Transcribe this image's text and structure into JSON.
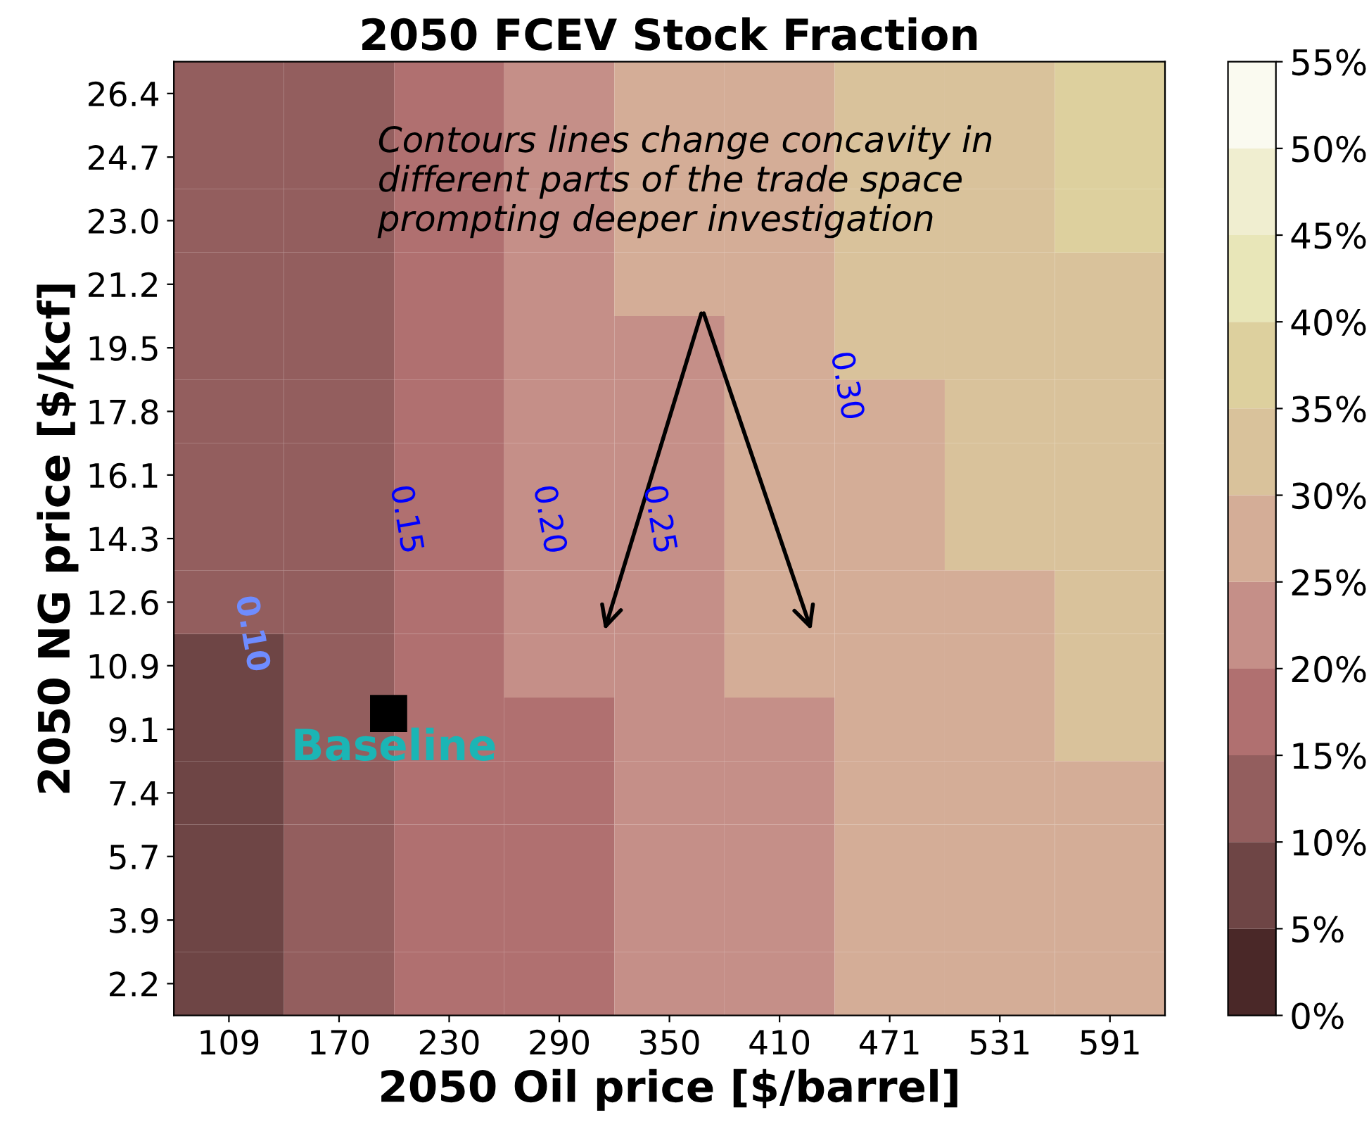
{
  "chart_data": {
    "type": "heatmap",
    "title": "2050 FCEV Stock Fraction",
    "xlabel": "2050 Oil price [$/barrel]",
    "ylabel": "2050 NG price [$/kcf]",
    "categories": [
      "109",
      "170",
      "230",
      "290",
      "350",
      "410",
      "471",
      "531",
      "591"
    ],
    "y_categories": [
      "26.4",
      "24.7",
      "23.0",
      "21.2",
      "19.5",
      "17.8",
      "16.1",
      "14.3",
      "12.6",
      "10.9",
      "9.1",
      "7.4",
      "5.7",
      "3.9",
      "2.2"
    ],
    "cells": [
      [
        11,
        14,
        18,
        22,
        26,
        29,
        31,
        34,
        36
      ],
      [
        11,
        14,
        18,
        22,
        25,
        28,
        31,
        33,
        35
      ],
      [
        11,
        14,
        18,
        22,
        25,
        28,
        30,
        33,
        35
      ],
      [
        11,
        14,
        18,
        22,
        25,
        27,
        30,
        32,
        34
      ],
      [
        10,
        13,
        17,
        21,
        24,
        27,
        30,
        32,
        34
      ],
      [
        10,
        13,
        17,
        21,
        24,
        27,
        29,
        31,
        33
      ],
      [
        10,
        13,
        17,
        21,
        24,
        26,
        29,
        31,
        33
      ],
      [
        10,
        13,
        17,
        20,
        23,
        26,
        28,
        30,
        32
      ],
      [
        10,
        13,
        16,
        20,
        23,
        26,
        27,
        29,
        31
      ],
      [
        9,
        13,
        16,
        20,
        22,
        25,
        27,
        29,
        30
      ],
      [
        9,
        13,
        16,
        19,
        22,
        24,
        26,
        28,
        30
      ],
      [
        9,
        12,
        15,
        19,
        21,
        24,
        26,
        28,
        29
      ],
      [
        9,
        12,
        15,
        18,
        21,
        23,
        25,
        27,
        29
      ],
      [
        9,
        12,
        15,
        18,
        21,
        23,
        25,
        27,
        29
      ],
      [
        9,
        12,
        15,
        18,
        21,
        23,
        25,
        27,
        28
      ]
    ],
    "clim": [
      0,
      55
    ],
    "cticks": [
      {
        "value": 0,
        "label": "0%"
      },
      {
        "value": 5,
        "label": "5%"
      },
      {
        "value": 10,
        "label": "10%"
      },
      {
        "value": 15,
        "label": "15%"
      },
      {
        "value": 20,
        "label": "20%"
      },
      {
        "value": 25,
        "label": "25%"
      },
      {
        "value": 30,
        "label": "30%"
      },
      {
        "value": 35,
        "label": "35%"
      },
      {
        "value": 40,
        "label": "40%"
      },
      {
        "value": 45,
        "label": "45%"
      },
      {
        "value": 50,
        "label": "50%"
      },
      {
        "value": 55,
        "label": "55%"
      }
    ],
    "annotations": [
      "0.10",
      "0.15",
      "0.20",
      "0.25",
      "0.30",
      "Baseline",
      "Contours lines change concavity in\ndifferent parts of the trade space\nprompting deeper investigation"
    ]
  }
}
